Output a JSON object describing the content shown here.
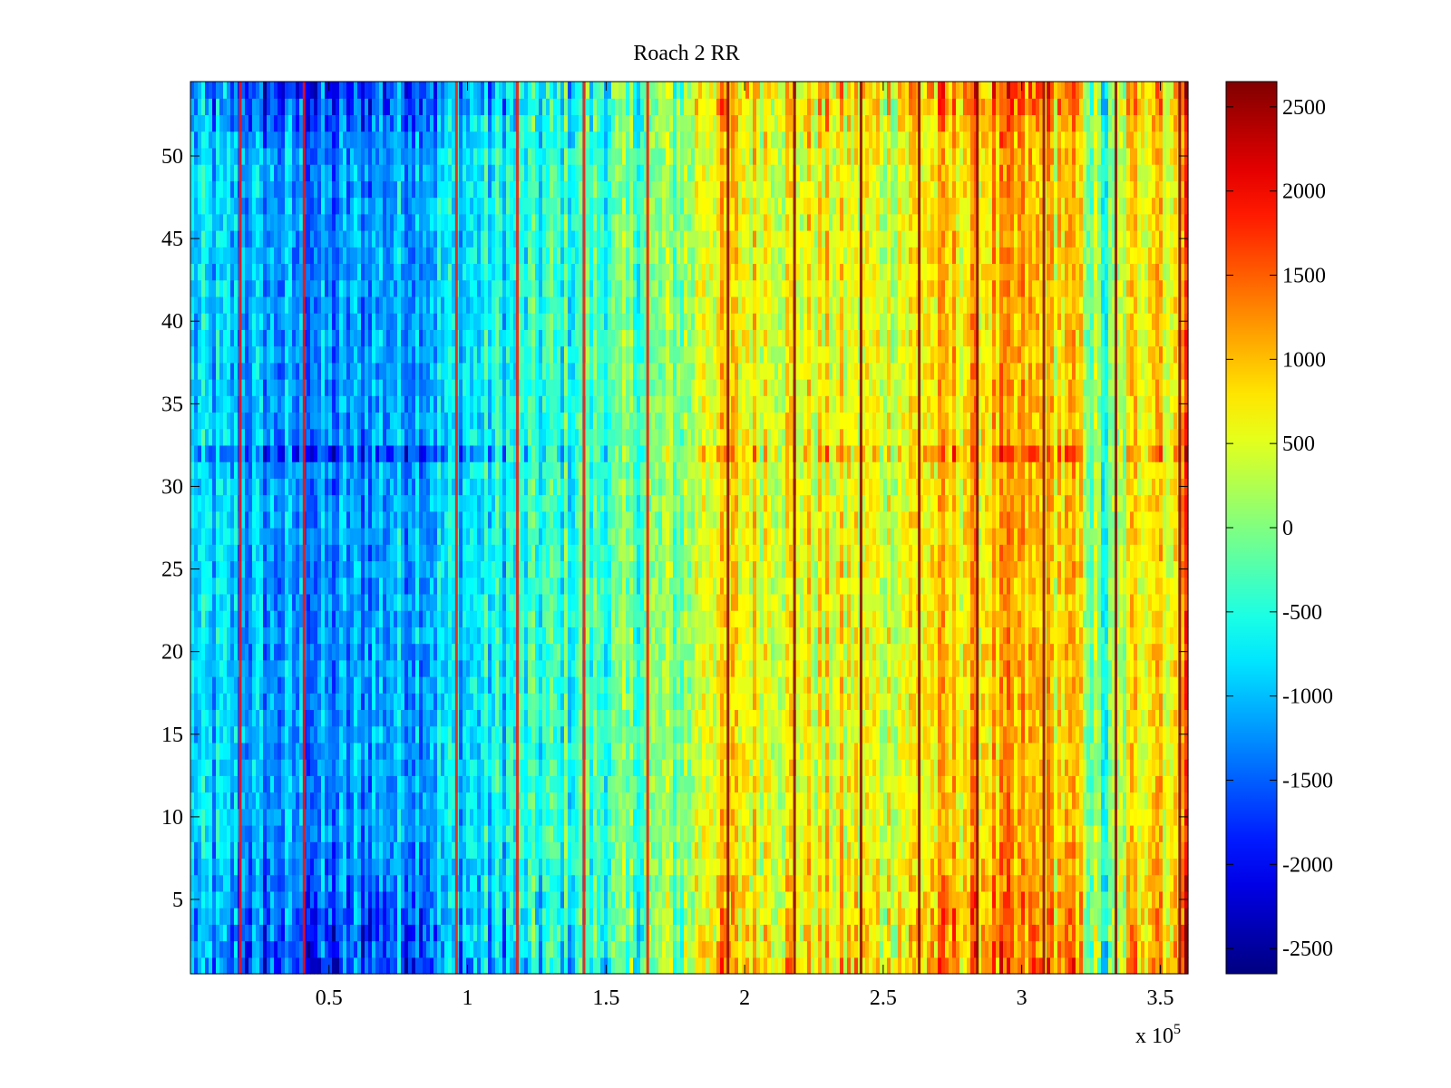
{
  "chart_data": {
    "type": "heatmap",
    "title": "Roach 2 RR",
    "xlabel": "",
    "ylabel": "",
    "x_scale_label": {
      "prefix": "x 10",
      "exponent": "5"
    },
    "xlim": [
      0,
      3.6
    ],
    "ylim": [
      0.5,
      54.5
    ],
    "x_ticks": [
      0.5,
      1,
      1.5,
      2,
      2.5,
      3,
      3.5
    ],
    "x_tick_labels": [
      "0.5",
      "1",
      "1.5",
      "2",
      "2.5",
      "3",
      "3.5"
    ],
    "y_ticks": [
      5,
      10,
      15,
      20,
      25,
      30,
      35,
      40,
      45,
      50
    ],
    "y_tick_labels": [
      "5",
      "10",
      "15",
      "20",
      "25",
      "30",
      "35",
      "40",
      "45",
      "50"
    ],
    "rows": 54,
    "colormap": "jet",
    "colorbar": {
      "range": [
        -2650,
        2650
      ],
      "ticks": [
        2500,
        2000,
        1500,
        1000,
        500,
        0,
        -500,
        -1000,
        -1500,
        -2000,
        -2500
      ],
      "tick_labels": [
        "2500",
        "2000",
        "1500",
        "1000",
        "500",
        "0",
        "-500",
        "-1000",
        "-1500",
        "-2000",
        "-2500"
      ]
    },
    "column_profile_x_e5": [
      0.0,
      0.2,
      0.4,
      0.5,
      0.7,
      1.0,
      1.3,
      1.6,
      1.8,
      1.85,
      2.1,
      2.5,
      2.8,
      3.0,
      3.2,
      3.3,
      3.4,
      3.5,
      3.55,
      3.6
    ],
    "column_profile_mean": [
      -900,
      -1100,
      -1250,
      -1350,
      -1100,
      -800,
      -500,
      -200,
      100,
      700,
      650,
      500,
      900,
      950,
      800,
      -500,
      700,
      1100,
      300,
      2300
    ],
    "row_offsets_note": "rows near y=1-8 and y=51-54 more extreme (darker blue on left, redder on right)",
    "stripes_x_e5": [
      0.18,
      0.41,
      0.96,
      1.18,
      1.42,
      1.65,
      1.94,
      2.18,
      2.42,
      2.63,
      2.84,
      3.08,
      3.34,
      3.57
    ]
  }
}
